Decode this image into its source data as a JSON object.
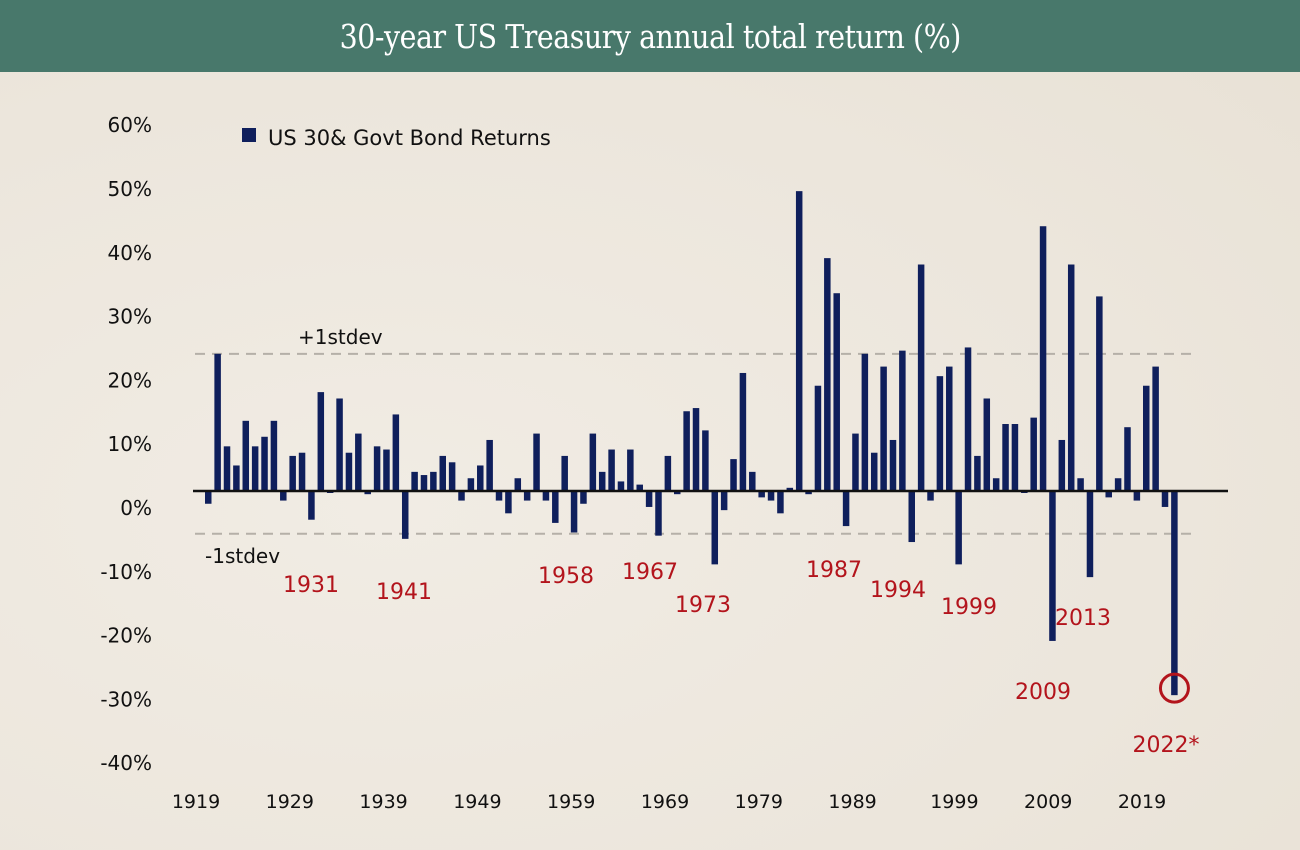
{
  "header": {
    "title": "30-year US Treasury annual total return (%)"
  },
  "colors": {
    "header_bg": "#48786b",
    "bar": "#0f1f5c",
    "annotation": "#b3141c",
    "sd_line": "#b5b0a8",
    "axis": "#111111"
  },
  "chart_data": {
    "type": "bar",
    "title": "30-year US Treasury annual total return (%)",
    "xlabel": "",
    "ylabel": "",
    "ylim": [
      -40,
      60
    ],
    "yticks": [
      60,
      50,
      40,
      30,
      20,
      10,
      0,
      -10,
      -20,
      -30,
      -40
    ],
    "ytick_labels": [
      "60%",
      "50%",
      "40%",
      "30%",
      "20%",
      "10%",
      "0%",
      "-10%",
      "-20%",
      "-30%",
      "-40%"
    ],
    "xticks": [
      1919,
      1929,
      1939,
      1949,
      1959,
      1969,
      1979,
      1989,
      1999,
      2009,
      2019
    ],
    "xtick_labels": [
      "1919",
      "1929",
      "1939",
      "1949",
      "1959",
      "1969",
      "1979",
      "1989",
      "1999",
      "2009",
      "2019"
    ],
    "legend": {
      "label": "US 30& Govt Bond Returns",
      "position": "top-left"
    },
    "grid": false,
    "reference_lines": [
      {
        "label": "+1stdev",
        "value": 18.2
      },
      {
        "label": "-1stdev",
        "value": -6.6
      }
    ],
    "annotations": [
      {
        "label": "1931",
        "year": 1931
      },
      {
        "label": "1941",
        "year": 1941
      },
      {
        "label": "1958",
        "year": 1958
      },
      {
        "label": "1967",
        "year": 1967
      },
      {
        "label": "1973",
        "year": 1973
      },
      {
        "label": "1987",
        "year": 1987
      },
      {
        "label": "1994",
        "year": 1994
      },
      {
        "label": "1999",
        "year": 1999
      },
      {
        "label": "2009",
        "year": 2009
      },
      {
        "label": "2013",
        "year": 2013
      },
      {
        "label": "2022*",
        "year": 2022,
        "highlight": true
      }
    ],
    "series": [
      {
        "name": "US 30& Govt Bond Returns",
        "x": [
          1919,
          1920,
          1921,
          1922,
          1923,
          1924,
          1925,
          1926,
          1927,
          1928,
          1929,
          1930,
          1931,
          1932,
          1933,
          1934,
          1935,
          1936,
          1937,
          1938,
          1939,
          1940,
          1941,
          1942,
          1943,
          1944,
          1945,
          1946,
          1947,
          1948,
          1949,
          1950,
          1951,
          1952,
          1953,
          1954,
          1955,
          1956,
          1957,
          1958,
          1959,
          1960,
          1961,
          1962,
          1963,
          1964,
          1965,
          1966,
          1967,
          1968,
          1969,
          1970,
          1971,
          1972,
          1973,
          1974,
          1975,
          1976,
          1977,
          1978,
          1979,
          1980,
          1981,
          1982,
          1983,
          1984,
          1985,
          1986,
          1987,
          1988,
          1989,
          1990,
          1991,
          1992,
          1993,
          1994,
          1995,
          1996,
          1997,
          1998,
          1999,
          2000,
          2001,
          2002,
          2003,
          2004,
          2005,
          2006,
          2007,
          2008,
          2009,
          2010,
          2011,
          2012,
          2013,
          2014,
          2015,
          2016,
          2017,
          2018,
          2019,
          2020,
          2021,
          2022
        ],
        "values": [
          -2.0,
          21.5,
          7.0,
          4.0,
          11.0,
          7.0,
          8.5,
          11.0,
          -1.5,
          5.5,
          6.0,
          -4.5,
          15.5,
          0.0,
          14.5,
          6.0,
          9.0,
          -0.5,
          7.0,
          6.5,
          12.0,
          -7.5,
          3.0,
          2.5,
          3.0,
          5.5,
          4.5,
          -1.5,
          2.0,
          4.0,
          8.0,
          -1.5,
          -3.5,
          2.0,
          -1.5,
          9.0,
          -1.5,
          -5.0,
          5.5,
          -6.5,
          -2.0,
          9.0,
          3.0,
          6.5,
          1.5,
          6.5,
          1.0,
          -2.5,
          -7.0,
          5.5,
          -0.5,
          12.5,
          13.0,
          9.5,
          -11.5,
          -3.0,
          5.0,
          18.5,
          3.0,
          -1.0,
          -1.5,
          -3.5,
          0.5,
          47.0,
          -0.5,
          16.5,
          36.5,
          31.0,
          -5.5,
          9.0,
          21.5,
          6.0,
          19.5,
          8.0,
          22.0,
          -8.0,
          35.5,
          -1.5,
          18.0,
          19.5,
          -11.5,
          22.5,
          5.5,
          14.5,
          2.0,
          10.5,
          10.5,
          0.0,
          11.5,
          41.5,
          -23.5,
          8.0,
          35.5,
          2.0,
          -13.5,
          30.5,
          -1.0,
          2.0,
          10.0,
          -1.5,
          16.5,
          19.5,
          -2.5,
          -32.0
        ]
      }
    ]
  }
}
